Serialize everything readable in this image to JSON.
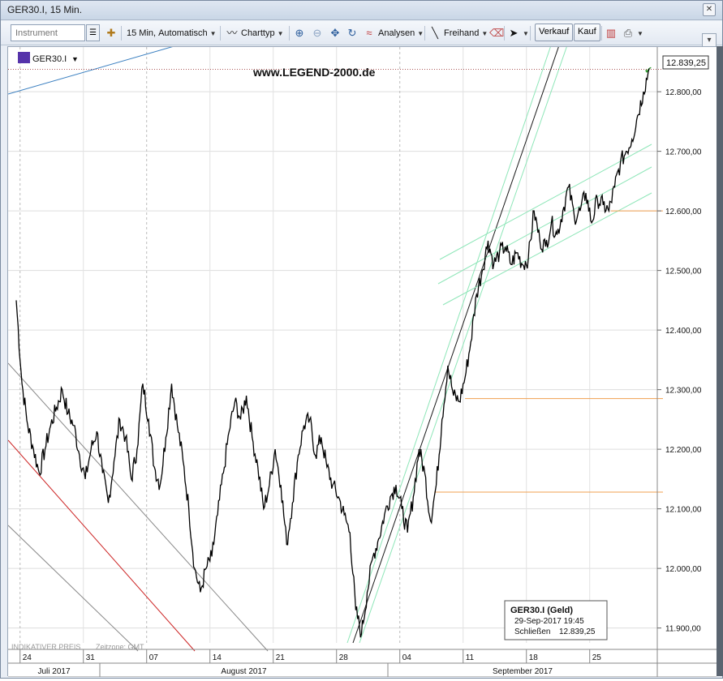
{
  "window": {
    "title": "GER30.I, 15 Min."
  },
  "toolbar": {
    "instrument_placeholder": "Instrument",
    "interval_label": "15 Min,",
    "scale_label": "Automatisch",
    "charttype_label": "Charttyp",
    "analysen_label": "Analysen",
    "freihand_label": "Freihand",
    "verkauf_label": "Verkauf",
    "kauf_label": "Kauf"
  },
  "legend": {
    "symbol": "GER30.I",
    "watermark": "www.LEGEND-2000.de"
  },
  "footer": {
    "indicative": "INDIKATIVER PREIS",
    "timezone": "Zeitzone: GMT"
  },
  "info_box": {
    "title": "GER30.I (Geld)",
    "datetime": "29-Sep-2017 19:45",
    "close_label": "Schließen",
    "close_value": "12.839,25"
  },
  "last_price": "12.839,25",
  "colors": {
    "price": "#000000",
    "channel": "#8ee6b8",
    "support": "#f0a050",
    "downtrend_red": "#cc2222",
    "topline_blue": "#3a7fc0"
  },
  "chart_data": {
    "type": "line",
    "ylim": [
      11875,
      12875
    ],
    "y_ticks": [
      {
        "v": 11900,
        "label": "11.900,00"
      },
      {
        "v": 12000,
        "label": "12.000,00"
      },
      {
        "v": 12100,
        "label": "12.100,00"
      },
      {
        "v": 12200,
        "label": "12.200,00"
      },
      {
        "v": 12300,
        "label": "12.300,00"
      },
      {
        "v": 12400,
        "label": "12.400,00"
      },
      {
        "v": 12500,
        "label": "12.500,00"
      },
      {
        "v": 12600,
        "label": "12.600,00"
      },
      {
        "v": 12700,
        "label": "12.700,00"
      },
      {
        "v": 12800,
        "label": "12.800,00"
      }
    ],
    "x_days": [
      "24",
      "31",
      "07",
      "14",
      "21",
      "28",
      "04",
      "11",
      "18",
      "25"
    ],
    "x_months": [
      "Juli 2017",
      "August 2017",
      "September 2017"
    ],
    "series": [
      {
        "values": [
          [
            0,
            12450
          ],
          [
            1.5,
            12310
          ],
          [
            3,
            12240
          ],
          [
            4.5,
            12200
          ],
          [
            6,
            12160
          ],
          [
            7.5,
            12200
          ],
          [
            9,
            12240
          ],
          [
            10.5,
            12270
          ],
          [
            12,
            12300
          ],
          [
            13.5,
            12260
          ],
          [
            15,
            12240
          ],
          [
            16.5,
            12190
          ],
          [
            18,
            12150
          ],
          [
            19.5,
            12200
          ],
          [
            21,
            12230
          ],
          [
            22.5,
            12160
          ],
          [
            24,
            12110
          ],
          [
            25.5,
            12180
          ],
          [
            27,
            12250
          ],
          [
            28.5,
            12220
          ],
          [
            30,
            12150
          ],
          [
            31.5,
            12200
          ],
          [
            33,
            12310
          ],
          [
            34.5,
            12250
          ],
          [
            36,
            12170
          ],
          [
            37.5,
            12140
          ],
          [
            39,
            12220
          ],
          [
            40.5,
            12310
          ],
          [
            42,
            12240
          ],
          [
            43.5,
            12180
          ],
          [
            45,
            12100
          ],
          [
            46.5,
            12000
          ],
          [
            48,
            11960
          ],
          [
            49.5,
            12000
          ],
          [
            51,
            12020
          ],
          [
            52.5,
            12090
          ],
          [
            54,
            12160
          ],
          [
            55.5,
            12230
          ],
          [
            57,
            12280
          ],
          [
            58.5,
            12250
          ],
          [
            60,
            12290
          ],
          [
            61.5,
            12220
          ],
          [
            63,
            12170
          ],
          [
            64.5,
            12100
          ],
          [
            66,
            12140
          ],
          [
            67.5,
            12200
          ],
          [
            69,
            12140
          ],
          [
            70.5,
            12040
          ],
          [
            72,
            12110
          ],
          [
            73.5,
            12190
          ],
          [
            75,
            12240
          ],
          [
            76.5,
            12250
          ],
          [
            78,
            12190
          ],
          [
            79.5,
            12220
          ],
          [
            81,
            12170
          ],
          [
            82.5,
            12140
          ],
          [
            84,
            12120
          ],
          [
            85.5,
            12090
          ],
          [
            87,
            12060
          ],
          [
            88.5,
            11930
          ],
          [
            90,
            11890
          ],
          [
            91.5,
            11960
          ],
          [
            93,
            12020
          ],
          [
            94.5,
            12050
          ],
          [
            96,
            12090
          ],
          [
            97.5,
            12120
          ],
          [
            99,
            12140
          ],
          [
            100.5,
            12100
          ],
          [
            102,
            12060
          ],
          [
            103.5,
            12120
          ],
          [
            105,
            12200
          ],
          [
            106.5,
            12160
          ],
          [
            108,
            12080
          ],
          [
            109.5,
            12140
          ],
          [
            111,
            12250
          ],
          [
            112.5,
            12340
          ],
          [
            114,
            12290
          ],
          [
            115.5,
            12280
          ],
          [
            117,
            12320
          ],
          [
            118.5,
            12380
          ],
          [
            120,
            12460
          ],
          [
            121.5,
            12500
          ],
          [
            123,
            12550
          ],
          [
            124.5,
            12510
          ],
          [
            126,
            12530
          ],
          [
            127.5,
            12540
          ],
          [
            129,
            12510
          ],
          [
            130.5,
            12530
          ],
          [
            132,
            12510
          ],
          [
            133.5,
            12520
          ],
          [
            135,
            12600
          ],
          [
            136.5,
            12550
          ],
          [
            138,
            12540
          ],
          [
            139.5,
            12580
          ],
          [
            141,
            12560
          ],
          [
            142.5,
            12600
          ],
          [
            144,
            12640
          ],
          [
            145.5,
            12590
          ],
          [
            147,
            12600
          ],
          [
            148.5,
            12630
          ],
          [
            150,
            12580
          ],
          [
            151.5,
            12620
          ],
          [
            153,
            12610
          ],
          [
            154.5,
            12600
          ],
          [
            156,
            12640
          ],
          [
            157.5,
            12680
          ],
          [
            159,
            12700
          ],
          [
            160.5,
            12720
          ],
          [
            162,
            12760
          ],
          [
            163.5,
            12800
          ],
          [
            165,
            12839
          ]
        ]
      }
    ],
    "x_max": 165,
    "annotations": [
      {
        "kind": "hline_partial",
        "y": 12285,
        "x_from": 117,
        "label": ""
      },
      {
        "kind": "hline_partial",
        "y": 12128,
        "x_from": 109,
        "label": ""
      },
      {
        "kind": "hline_partial",
        "y": 12600,
        "x_from": 155,
        "label": ""
      }
    ]
  }
}
